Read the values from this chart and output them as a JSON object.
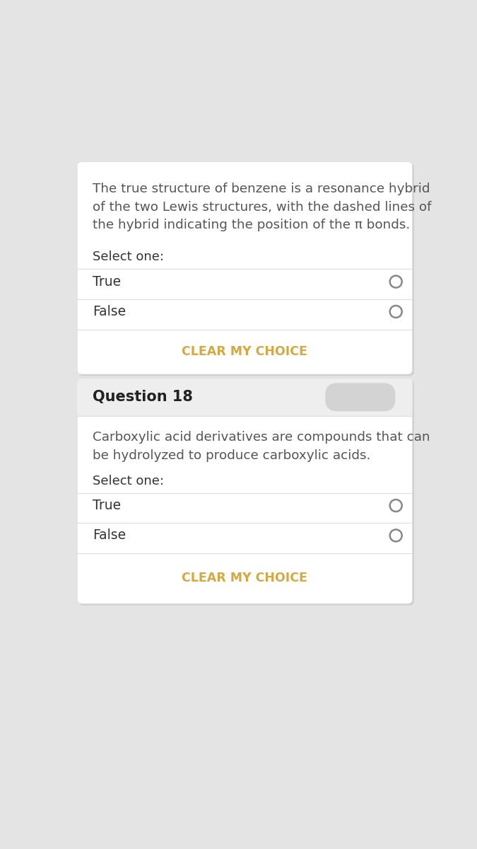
{
  "page_bg": "#e4e4e4",
  "card_bg": "#ffffff",
  "question_header_bg": "#eeeeee",
  "q17_text": "The true structure of benzene is a resonance hybrid\nof the two Lewis structures, with the dashed lines of\nthe hybrid indicating the position of the π bonds.",
  "select_one": "Select one:",
  "true_label": "True",
  "false_label": "False",
  "clear_btn": "CLEAR MY CHOICE",
  "clear_color": "#d4a843",
  "q18_header": "Question 18",
  "q18_text": "Carboxylic acid derivatives are compounds that can\nbe hydrolyzed to produce carboxylic acids.",
  "radio_color": "#888888",
  "text_color": "#555555",
  "label_color": "#333333",
  "header_text_color": "#222222",
  "border_color": "#dddddd"
}
